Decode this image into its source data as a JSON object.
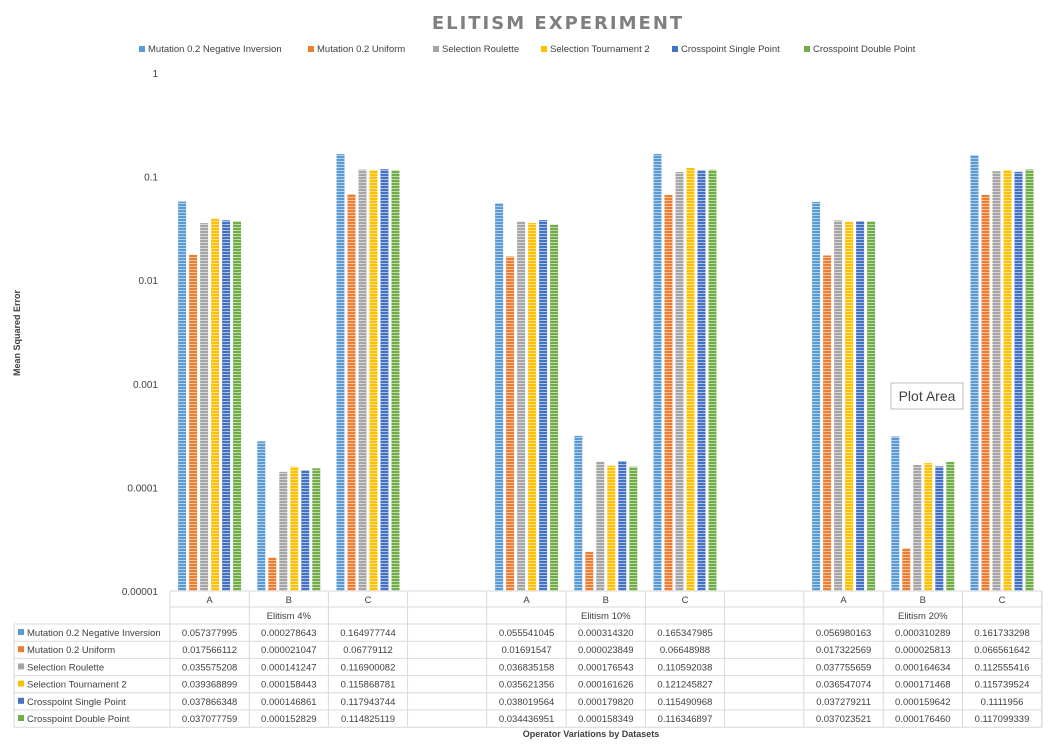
{
  "chart_data": {
    "type": "bar",
    "title": "ELITISM EXPERIMENT",
    "xlabel": "Operator Variations by Datasets",
    "ylabel": "Mean Squared Error",
    "yscale": "log",
    "ylim": [
      1e-05,
      1
    ],
    "yticks": [
      "0.00001",
      "0.0001",
      "0.001",
      "0.01",
      "0.1",
      "1"
    ],
    "legend_position": "top",
    "groups": [
      "Elitism 4%",
      "Elitism 10%",
      "Elitism 20%"
    ],
    "categories": [
      "A",
      "B",
      "C"
    ],
    "tooltip": "Plot Area",
    "series": [
      {
        "name": "Mutation 0.2 Negative Inversion",
        "color": "#5b9bd5",
        "values": [
          [
            0.057377995,
            0.000278643,
            0.164977744
          ],
          [
            0.055541045,
            0.00031432,
            0.165347985
          ],
          [
            0.056980163,
            0.000310289,
            0.161733298
          ]
        ],
        "labels": [
          [
            "0.057377995",
            "0.000278643",
            "0.164977744"
          ],
          [
            "0.055541045",
            "0.000314320",
            "0.165347985"
          ],
          [
            "0.056980163",
            "0.000310289",
            "0.161733298"
          ]
        ]
      },
      {
        "name": "Mutation 0.2 Uniform",
        "color": "#ed7d31",
        "values": [
          [
            0.017566112,
            2.1047e-05,
            0.06779112
          ],
          [
            0.01691547,
            2.3849e-05,
            0.06648988
          ],
          [
            0.017322569,
            2.5813e-05,
            0.066561642
          ]
        ],
        "labels": [
          [
            "0.017566112",
            "0.000021047",
            "0.06779112"
          ],
          [
            "0.01691547",
            "0.000023849",
            "0.06648988"
          ],
          [
            "0.017322569",
            "0.000025813",
            "0.066561642"
          ]
        ]
      },
      {
        "name": "Selection Roulette",
        "color": "#a5a5a5",
        "values": [
          [
            0.035575208,
            0.000141247,
            0.116900082
          ],
          [
            0.036835158,
            0.000176543,
            0.110592038
          ],
          [
            0.037755659,
            0.000164634,
            0.112555416
          ]
        ],
        "labels": [
          [
            "0.035575208",
            "0.000141247",
            "0.116900082"
          ],
          [
            "0.036835158",
            "0.000176543",
            "0.110592038"
          ],
          [
            "0.037755659",
            "0.000164634",
            "0.112555416"
          ]
        ]
      },
      {
        "name": "Selection Tournament 2",
        "color": "#ffc000",
        "values": [
          [
            0.039368899,
            0.000158443,
            0.115868781
          ],
          [
            0.035621356,
            0.000161626,
            0.121245827
          ],
          [
            0.036547074,
            0.000171468,
            0.115739524
          ]
        ],
        "labels": [
          [
            "0.039368899",
            "0.000158443",
            "0.115868781"
          ],
          [
            "0.035621356",
            "0.000161626",
            "0.121245827"
          ],
          [
            "0.036547074",
            "0.000171468",
            "0.115739524"
          ]
        ]
      },
      {
        "name": "Crosspoint Single Point",
        "color": "#4472c4",
        "values": [
          [
            0.037866348,
            0.000146861,
            0.117943744
          ],
          [
            0.038019564,
            0.00017982,
            0.115490968
          ],
          [
            0.037279211,
            0.000159642,
            0.1111956
          ]
        ],
        "labels": [
          [
            "0.037866348",
            "0.000146861",
            "0.117943744"
          ],
          [
            "0.038019564",
            "0.000179820",
            "0.115490968"
          ],
          [
            "0.037279211",
            "0.000159642",
            "0.1111956"
          ]
        ]
      },
      {
        "name": "Crosspoint Double Point",
        "color": "#70ad47",
        "values": [
          [
            0.037077759,
            0.000152829,
            0.114825119
          ],
          [
            0.034436951,
            0.000158349,
            0.116346897
          ],
          [
            0.037023521,
            0.00017646,
            0.117099339
          ]
        ],
        "labels": [
          [
            "0.037077759",
            "0.000152829",
            "0.114825119"
          ],
          [
            "0.034436951",
            "0.000158349",
            "0.116346897"
          ],
          [
            "0.037023521",
            "0.000176460",
            "0.117099339"
          ]
        ]
      }
    ]
  }
}
